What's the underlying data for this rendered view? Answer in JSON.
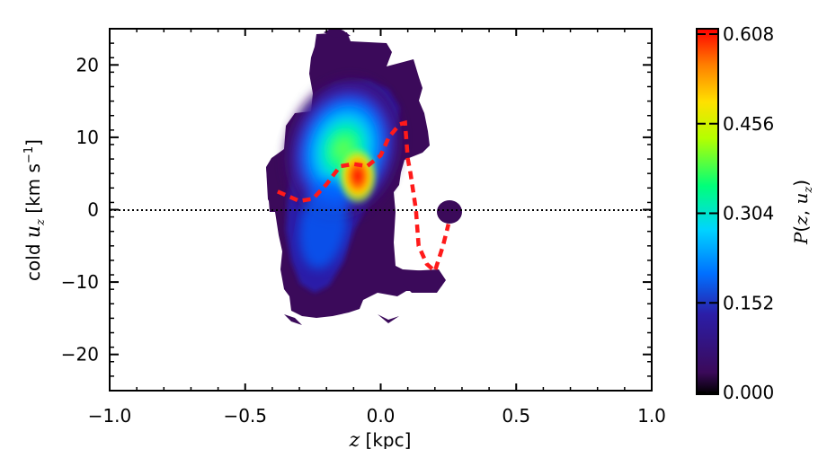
{
  "chart_data": {
    "type": "heatmap",
    "xlabel": "z [kpc]",
    "ylabel": "cold u_z [km s^-1]",
    "xlim": [
      -1.0,
      1.0
    ],
    "ylim": [
      -25,
      25
    ],
    "xticks": [
      "-1.0",
      "-0.5",
      "0.0",
      "0.5",
      "1.0"
    ],
    "yticks": [
      "-20",
      "-10",
      "0",
      "10",
      "20"
    ],
    "colorbar": {
      "label": "P(z, u_z)",
      "range": [
        0.0,
        0.608
      ],
      "ticks": [
        "0.000",
        "0.152",
        "0.304",
        "0.456",
        "0.608"
      ],
      "colormap": [
        "#000000",
        "#3b0a5a",
        "#2b1ea8",
        "#0070ff",
        "#00d4ff",
        "#00ff7a",
        "#b4ff00",
        "#ffe000",
        "#ff8000",
        "#ff0000"
      ]
    },
    "reference_line": {
      "style": "dotted",
      "y": 0
    },
    "density_blobs": [
      {
        "z": -0.1,
        "u": 4.5,
        "peak": 0.608,
        "shape": "core"
      },
      {
        "z": -0.18,
        "u": 5.0,
        "peak": 0.4,
        "shape": "main"
      },
      {
        "z": 0.25,
        "u": -1.0,
        "peak": 0.02,
        "shape": "small"
      },
      {
        "z": 0.17,
        "u": -9.5,
        "peak": 0.02,
        "shape": "small"
      }
    ],
    "mean_curve": {
      "style": "dashed",
      "color": "#ff1a1a",
      "points": [
        {
          "z": -0.38,
          "u": 2.5
        },
        {
          "z": -0.3,
          "u": 1.2
        },
        {
          "z": -0.25,
          "u": 1.5
        },
        {
          "z": -0.2,
          "u": 3.5
        },
        {
          "z": -0.15,
          "u": 6.0
        },
        {
          "z": -0.1,
          "u": 6.3
        },
        {
          "z": -0.05,
          "u": 6.0
        },
        {
          "z": 0.0,
          "u": 7.5
        },
        {
          "z": 0.03,
          "u": 10.0
        },
        {
          "z": 0.07,
          "u": 11.8
        },
        {
          "z": 0.09,
          "u": 12.0
        },
        {
          "z": 0.1,
          "u": 7.0
        },
        {
          "z": 0.11,
          "u": 5.0
        },
        {
          "z": 0.13,
          "u": 0.0
        },
        {
          "z": 0.14,
          "u": -5.0
        },
        {
          "z": 0.17,
          "u": -7.5
        },
        {
          "z": 0.2,
          "u": -8.5
        },
        {
          "z": 0.23,
          "u": -5.0
        },
        {
          "z": 0.25,
          "u": -2.0
        }
      ]
    }
  }
}
